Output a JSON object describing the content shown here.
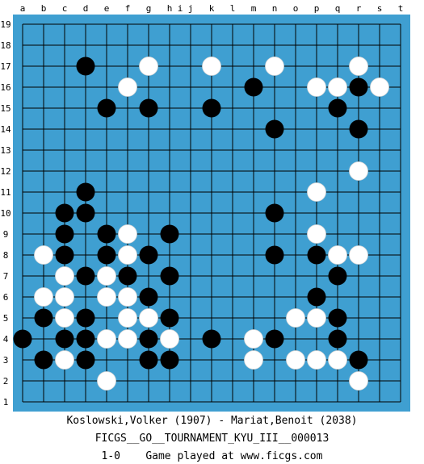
{
  "board": {
    "size": 19,
    "background_color": "#3f9fd1",
    "line_color": "#000000",
    "black_color": "#000000",
    "white_color": "#ffffff",
    "columns": [
      "a",
      "b",
      "c",
      "d",
      "e",
      "f",
      "g",
      "h",
      "j",
      "k",
      "l",
      "m",
      "n",
      "o",
      "p",
      "q",
      "r",
      "s",
      "t"
    ],
    "extra_top_labels": [
      "i"
    ],
    "rows": [
      "19",
      "18",
      "17",
      "16",
      "15",
      "14",
      "13",
      "12",
      "11",
      "10",
      "9",
      "8",
      "7",
      "6",
      "5",
      "4",
      "3",
      "2",
      "1"
    ],
    "black_stones": [
      "d17",
      "m16",
      "r16",
      "e15",
      "g15",
      "k15",
      "q15",
      "n14",
      "r14",
      "d11",
      "c10",
      "d10",
      "n10",
      "c9",
      "e9",
      "h9",
      "c8",
      "e8",
      "g8",
      "n8",
      "p8",
      "d7",
      "f7",
      "h7",
      "q7",
      "p6",
      "b5",
      "d5",
      "g6",
      "h5",
      "q5",
      "a4",
      "c4",
      "d4",
      "g4",
      "k4",
      "n4",
      "q4",
      "b3",
      "d3",
      "g3",
      "h3",
      "r3"
    ],
    "white_stones": [
      "g17",
      "k17",
      "n17",
      "r17",
      "f16",
      "p16",
      "q16",
      "s16",
      "r12",
      "p11",
      "f9",
      "p9",
      "b8",
      "f8",
      "q8",
      "r8",
      "c7",
      "e7",
      "b6",
      "c6",
      "e6",
      "f6",
      "c5",
      "f5",
      "o5",
      "p5",
      "e4",
      "f4",
      "h4",
      "m4",
      "g5",
      "c3",
      "m3",
      "o3",
      "p3",
      "q3",
      "e2",
      "r2"
    ]
  },
  "footer": {
    "players": "Koslowski,Volker (1907) - Mariat,Benoit (2038)",
    "tournament": "FICGS__GO__TOURNAMENT_KYU_III__000013",
    "result": "1-0",
    "site_text": "Game played at www.ficgs.com"
  }
}
